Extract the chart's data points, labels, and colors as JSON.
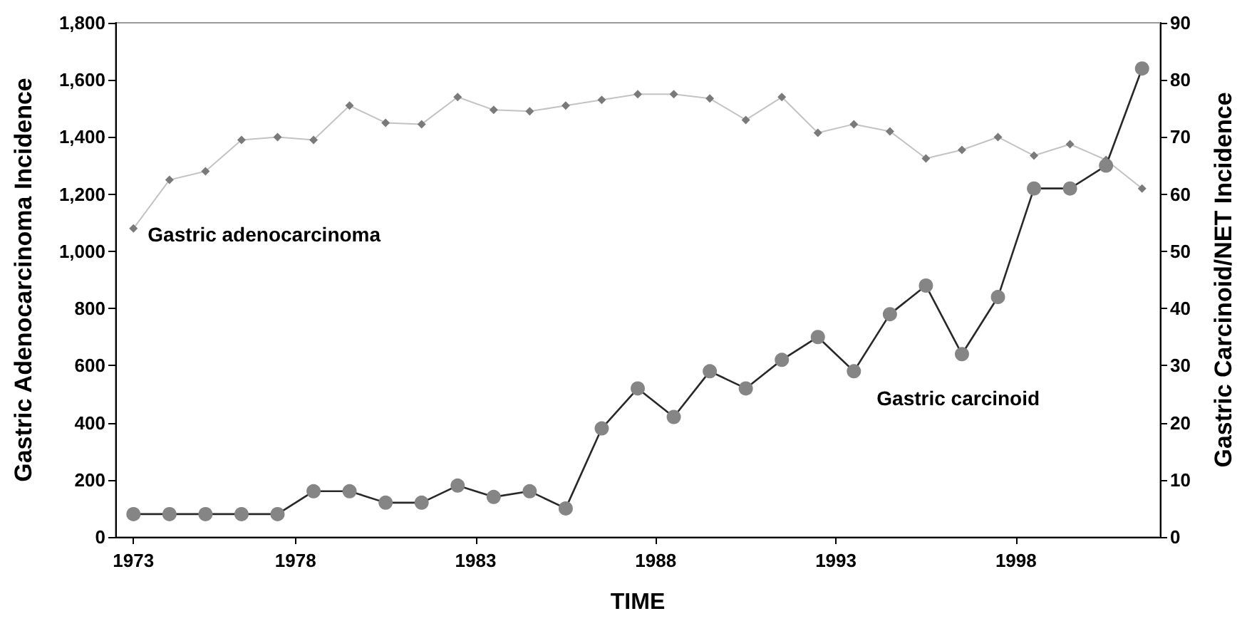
{
  "chart_data": {
    "type": "line",
    "xlabel": "TIME",
    "ylabel": "Gastric Adenocarcinoma Incidence",
    "y2label": "Gastric Carcinoid/NET Incidence",
    "x": [
      1973,
      1974,
      1975,
      1976,
      1977,
      1978,
      1979,
      1980,
      1981,
      1982,
      1983,
      1984,
      1985,
      1986,
      1987,
      1988,
      1989,
      1990,
      1991,
      1992,
      1993,
      1994,
      1995,
      1996,
      1997,
      1998,
      1999,
      2000,
      2001
    ],
    "series": [
      {
        "name": "Gastric adenocarcinoma",
        "color": "#7a7a7a",
        "marker": "diamond",
        "values": [
          1080,
          1250,
          1280,
          1390,
          1400,
          1390,
          1510,
          1450,
          1445,
          1540,
          1495,
          1490,
          1510,
          1530,
          1550,
          1550,
          1535,
          1460,
          1540,
          1415,
          1445,
          1420,
          1325,
          1355,
          1400,
          1335,
          1375,
          1320,
          1220
        ]
      },
      {
        "name": "Gastric carcinoid",
        "color": "#858585",
        "marker": "circle",
        "axis": "y2",
        "values": [
          4,
          4,
          4,
          4,
          4,
          8,
          8,
          6,
          6,
          9,
          7,
          8,
          5,
          19,
          26,
          21,
          29,
          26,
          31,
          35,
          29,
          39,
          44,
          32,
          42,
          61,
          61,
          65,
          82
        ]
      }
    ],
    "xlim": [
      1972.5,
      2001.5
    ],
    "xticks": [
      {
        "value": 1973,
        "label": "1973"
      },
      {
        "value": 1977.5,
        "label": "1978"
      },
      {
        "value": 1982.5,
        "label": "1983"
      },
      {
        "value": 1987.5,
        "label": "1988"
      },
      {
        "value": 1992.5,
        "label": "1993"
      },
      {
        "value": 1997.5,
        "label": "1998"
      }
    ],
    "ylim": [
      0,
      1800
    ],
    "yticks": [
      0,
      200,
      400,
      600,
      800,
      {
        "value": 1000,
        "label": "1,000"
      },
      {
        "value": 1200,
        "label": "1,200"
      },
      {
        "value": 1400,
        "label": "1,400"
      },
      {
        "value": 1600,
        "label": "1,600"
      },
      {
        "value": 1800,
        "label": "1,800"
      }
    ],
    "y2lim": [
      0,
      90
    ],
    "y2ticks": [
      0,
      10,
      20,
      30,
      40,
      50,
      60,
      70,
      80,
      90
    ],
    "grid": false
  }
}
